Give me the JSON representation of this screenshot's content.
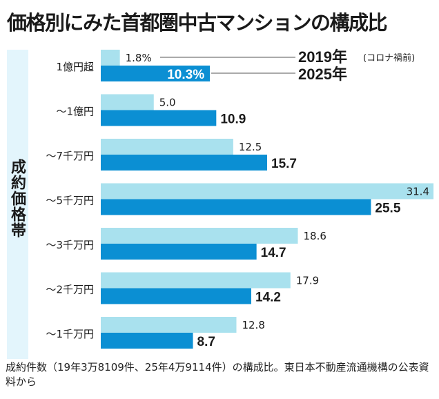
{
  "chart_data": {
    "type": "bar",
    "orientation": "horizontal",
    "title": "価格別にみた首都圏中古マンションの構成比",
    "ylabel": "成約価格帯",
    "categories": [
      "1億円超",
      "～1億円",
      "～7千万円",
      "～5千万円",
      "～3千万円",
      "～2千万円",
      "～1千万円"
    ],
    "series": [
      {
        "name": "2019年",
        "note": "(コロナ禍前)",
        "color": "#a9e1ee",
        "values": [
          1.8,
          5.0,
          12.5,
          31.4,
          18.6,
          17.9,
          12.8
        ],
        "labels": [
          "1.8%",
          "5.0",
          "12.5",
          "31.4",
          "18.6",
          "17.9",
          "12.8"
        ]
      },
      {
        "name": "2025年",
        "color": "#0b8fd3",
        "values": [
          10.3,
          10.9,
          15.7,
          25.5,
          14.7,
          14.2,
          8.7
        ],
        "labels": [
          "10.3%",
          "10.9",
          "15.7",
          "25.5",
          "14.7",
          "14.2",
          "8.7"
        ]
      }
    ],
    "xlim": [
      0,
      31.4
    ],
    "unit": "%"
  },
  "footnote": "成約件数（19年3万8109件、25年4万9114件）の構成比。東日本不動産流通機構の公表資料から"
}
